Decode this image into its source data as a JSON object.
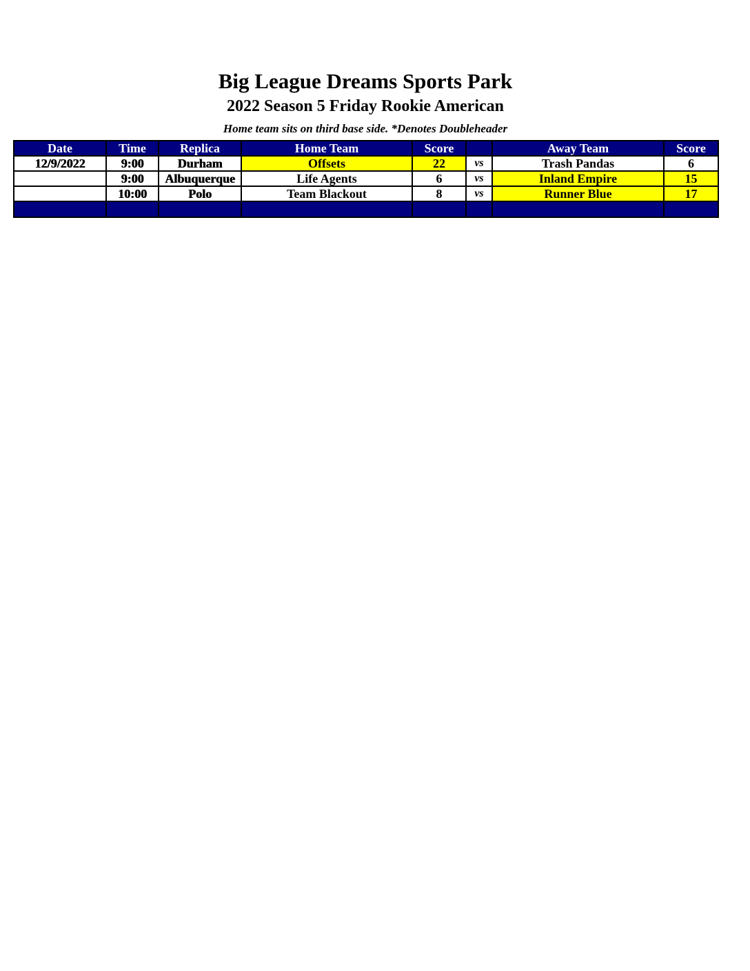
{
  "title": "Big League Dreams Sports Park",
  "subtitle": "2022 Season 5 Friday Rookie American",
  "note": "Home team sits on third base side.  *Denotes Doubleheader",
  "colors": {
    "header_bg": "#000080",
    "winner_highlight": "#ffff00"
  },
  "table": {
    "headers": [
      "Date",
      "Time",
      "Replica",
      "Home Team",
      "Score",
      "",
      "Away Team",
      "Score"
    ],
    "rows": [
      {
        "date": "12/9/2022",
        "time": "9:00",
        "replica": "Durham",
        "home": "Offsets",
        "home_score": "22",
        "vs": "vs",
        "away": "Trash Pandas",
        "away_score": "6",
        "winner": "home"
      },
      {
        "date": "",
        "time": "9:00",
        "replica": "Albuquerque",
        "home": "Life Agents",
        "home_score": "6",
        "vs": "vs",
        "away": "Inland Empire",
        "away_score": "15",
        "winner": "away"
      },
      {
        "date": "",
        "time": "10:00",
        "replica": "Polo",
        "home": "Team Blackout",
        "home_score": "8",
        "vs": "vs",
        "away": "Runner Blue",
        "away_score": "17",
        "winner": "away"
      }
    ]
  }
}
